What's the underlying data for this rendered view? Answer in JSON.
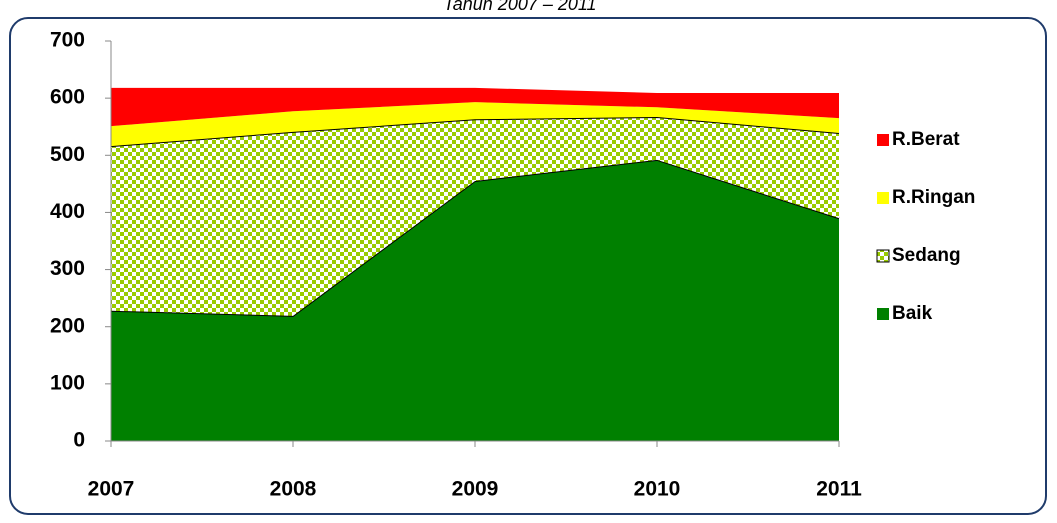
{
  "chart_data": {
    "type": "area",
    "stacked": true,
    "title": "Tahun 2007 – 2011",
    "categories": [
      "2007",
      "2008",
      "2009",
      "2010",
      "2011"
    ],
    "series": [
      {
        "name": "Baik",
        "color": "#008000",
        "values": [
          228,
          219,
          455,
          492,
          390
        ]
      },
      {
        "name": "Sedang",
        "color": "#99cc00",
        "pattern": "checker",
        "values": [
          288,
          322,
          108,
          75,
          149
        ]
      },
      {
        "name": "R.Ringan",
        "color": "#ffff00",
        "values": [
          35,
          36,
          30,
          17,
          26
        ]
      },
      {
        "name": "R.Berat",
        "color": "#ff0000",
        "values": [
          67,
          41,
          25,
          25,
          44
        ]
      }
    ],
    "ylim": [
      0,
      700
    ],
    "yticks": [
      0,
      100,
      200,
      300,
      400,
      500,
      600,
      700
    ],
    "grid": false,
    "legend": "right"
  }
}
